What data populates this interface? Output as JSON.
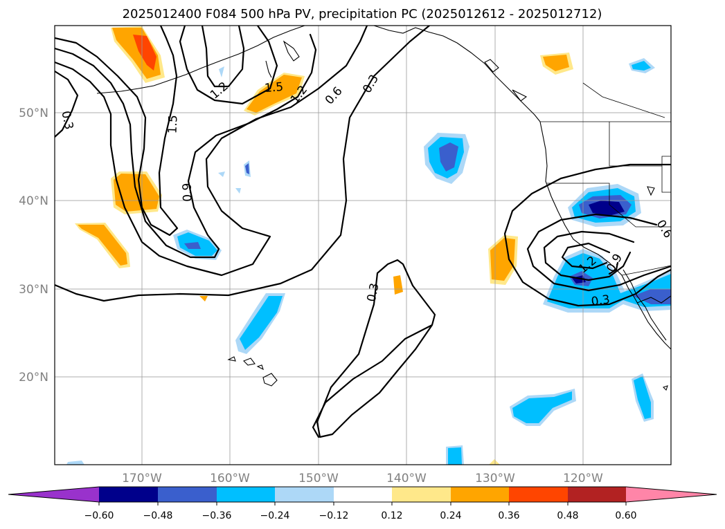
{
  "title": "2025012400 F084 500 hPa PV, precipitation PC (2025012612 - 2025012712)",
  "lat_labels": [
    "50°N",
    "40°N",
    "30°N",
    "20°N"
  ],
  "lon_labels": [
    "170°W",
    "160°W",
    "150°W",
    "140°W",
    "130°W",
    "120°W"
  ],
  "contour_labels": [
    "0.3",
    "1.5",
    "1.2",
    "1.5",
    "1.2",
    "0.6",
    "0.3",
    "0.9",
    "0.3",
    "0.6",
    "1.2",
    "0.9",
    "0.3"
  ],
  "colorbar": {
    "ticks": [
      "−0.60",
      "−0.48",
      "−0.36",
      "−0.24",
      "−0.12",
      "0.12",
      "0.24",
      "0.36",
      "0.48",
      "0.60"
    ],
    "colors": [
      "#9932cc",
      "#00008b",
      "#3a5fcd",
      "#00bfff",
      "#add8f7",
      "#ffffff",
      "#ffe88a",
      "#ffa500",
      "#ff4500",
      "#b22222",
      "#ff85a8"
    ]
  },
  "colors": {
    "orange": "#ffa500",
    "orange_red": "#ff4500",
    "yellow": "#ffe88a",
    "light_blue": "#add8f7",
    "deep_sky": "#00bfff",
    "royal_blue": "#3a5fcd",
    "navy": "#00008b"
  }
}
